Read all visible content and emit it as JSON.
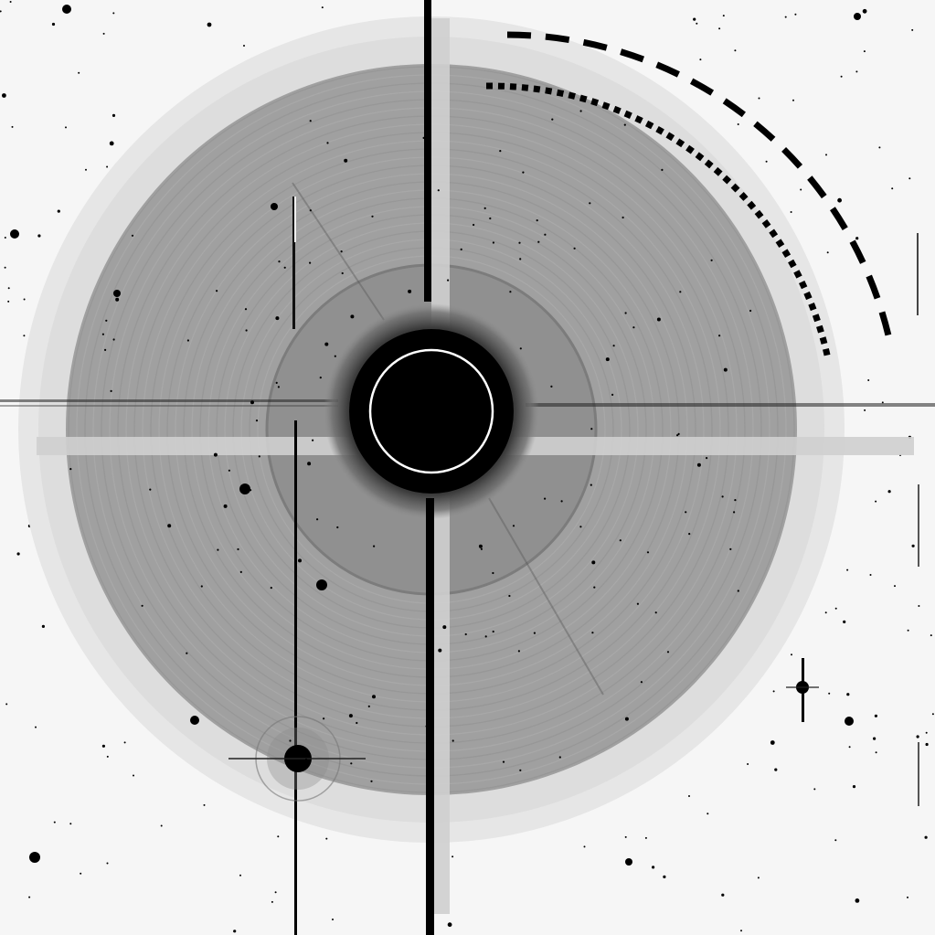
{
  "image": {
    "kind": "inverted-grayscale astronomical frame",
    "background_color": "#f6f6f6",
    "ink_color": "#000000",
    "halo_outer_color": "#e2e2e2",
    "halo_inner_color": "#9c9c9c",
    "core_color": "#050505",
    "aperture_ring_color": "#ffffff",
    "ring_outer_style": "dashed",
    "ring_inner_style": "dotted"
  }
}
